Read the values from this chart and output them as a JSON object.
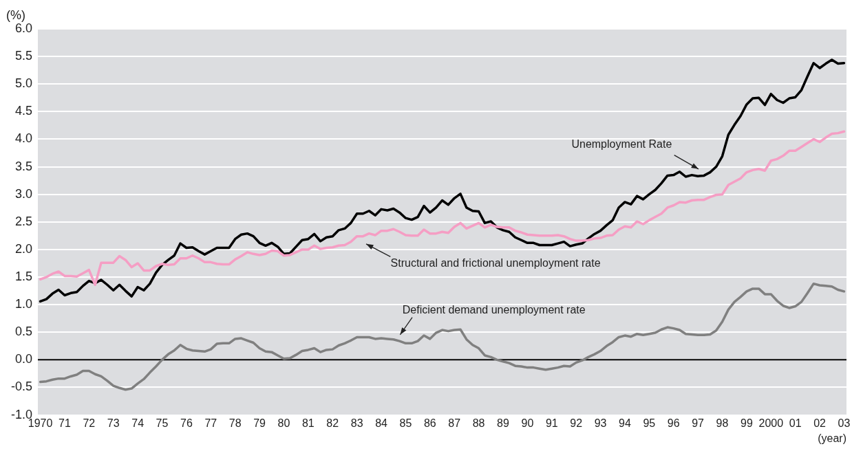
{
  "chart_data": {
    "type": "line",
    "ylabel": "(%)",
    "xlabel": "(year)",
    "x": [
      1970,
      1970.25,
      1970.5,
      1970.75,
      1971,
      1971.25,
      1971.5,
      1971.75,
      1972,
      1972.25,
      1972.5,
      1972.75,
      1973,
      1973.25,
      1973.5,
      1973.75,
      1974,
      1974.25,
      1974.5,
      1974.75,
      1975,
      1975.25,
      1975.5,
      1975.75,
      1976,
      1976.25,
      1976.5,
      1976.75,
      1977,
      1977.25,
      1977.5,
      1977.75,
      1978,
      1978.25,
      1978.5,
      1978.75,
      1979,
      1979.25,
      1979.5,
      1979.75,
      1980,
      1980.25,
      1980.5,
      1980.75,
      1981,
      1981.25,
      1981.5,
      1981.75,
      1982,
      1982.25,
      1982.5,
      1982.75,
      1983,
      1983.25,
      1983.5,
      1983.75,
      1984,
      1984.25,
      1984.5,
      1984.75,
      1985,
      1985.25,
      1985.5,
      1985.75,
      1986,
      1986.25,
      1986.5,
      1986.75,
      1987,
      1987.25,
      1987.5,
      1987.75,
      1988,
      1988.25,
      1988.5,
      1988.75,
      1989,
      1989.25,
      1989.5,
      1989.75,
      1990,
      1990.25,
      1990.5,
      1990.75,
      1991,
      1991.25,
      1991.5,
      1991.75,
      1992,
      1992.25,
      1992.5,
      1992.75,
      1993,
      1993.25,
      1993.5,
      1993.75,
      1994,
      1994.25,
      1994.5,
      1994.75,
      1995,
      1995.25,
      1995.5,
      1995.75,
      1996,
      1996.25,
      1996.5,
      1996.75,
      1997,
      1997.25,
      1997.5,
      1997.75,
      1998,
      1998.25,
      1998.5,
      1998.75,
      1999,
      1999.25,
      1999.5,
      1999.75,
      2000,
      2000.25,
      2000.5,
      2000.75,
      2001,
      2001.25,
      2001.5,
      2001.75,
      2002,
      2002.25,
      2002.5,
      2002.75,
      2003
    ],
    "series": [
      {
        "color": "#f59ec4",
        "values": [
          1.46,
          1.5,
          1.56,
          1.6,
          1.52,
          1.52,
          1.51,
          1.57,
          1.63,
          1.36,
          1.76,
          1.76,
          1.76,
          1.88,
          1.81,
          1.68,
          1.75,
          1.62,
          1.62,
          1.7,
          1.74,
          1.72,
          1.73,
          1.84,
          1.84,
          1.89,
          1.84,
          1.77,
          1.77,
          1.74,
          1.73,
          1.73,
          1.82,
          1.88,
          1.95,
          1.92,
          1.9,
          1.92,
          1.98,
          1.97,
          1.89,
          1.9,
          1.95,
          2.0,
          2.0,
          2.07,
          2.01,
          2.03,
          2.04,
          2.07,
          2.08,
          2.14,
          2.24,
          2.24,
          2.29,
          2.26,
          2.34,
          2.34,
          2.37,
          2.32,
          2.26,
          2.25,
          2.25,
          2.36,
          2.29,
          2.29,
          2.32,
          2.3,
          2.41,
          2.48,
          2.38,
          2.43,
          2.48,
          2.4,
          2.45,
          2.41,
          2.4,
          2.4,
          2.34,
          2.31,
          2.27,
          2.26,
          2.25,
          2.25,
          2.25,
          2.26,
          2.24,
          2.19,
          2.16,
          2.16,
          2.17,
          2.2,
          2.21,
          2.25,
          2.26,
          2.36,
          2.42,
          2.4,
          2.51,
          2.46,
          2.53,
          2.59,
          2.65,
          2.76,
          2.8,
          2.86,
          2.85,
          2.89,
          2.9,
          2.9,
          2.95,
          2.99,
          3.0,
          3.17,
          3.23,
          3.29,
          3.4,
          3.44,
          3.46,
          3.43,
          3.61,
          3.64,
          3.7,
          3.79,
          3.79,
          3.86,
          3.93,
          4.0,
          3.95,
          4.03,
          4.1,
          4.11,
          4.14
        ]
      },
      {
        "color": "#000000",
        "values": [
          1.06,
          1.1,
          1.2,
          1.27,
          1.17,
          1.21,
          1.23,
          1.34,
          1.43,
          1.39,
          1.45,
          1.36,
          1.26,
          1.36,
          1.25,
          1.15,
          1.32,
          1.26,
          1.38,
          1.58,
          1.72,
          1.81,
          1.89,
          2.11,
          2.03,
          2.04,
          1.97,
          1.91,
          1.97,
          2.03,
          2.03,
          2.03,
          2.19,
          2.27,
          2.29,
          2.24,
          2.12,
          2.07,
          2.12,
          2.05,
          1.92,
          1.93,
          2.05,
          2.17,
          2.19,
          2.28,
          2.15,
          2.22,
          2.24,
          2.35,
          2.38,
          2.48,
          2.65,
          2.65,
          2.7,
          2.62,
          2.73,
          2.71,
          2.74,
          2.67,
          2.57,
          2.54,
          2.59,
          2.79,
          2.67,
          2.76,
          2.89,
          2.81,
          2.93,
          3.01,
          2.76,
          2.7,
          2.69,
          2.48,
          2.51,
          2.4,
          2.35,
          2.32,
          2.22,
          2.17,
          2.12,
          2.12,
          2.08,
          2.08,
          2.08,
          2.11,
          2.14,
          2.06,
          2.09,
          2.11,
          2.2,
          2.28,
          2.34,
          2.44,
          2.53,
          2.76,
          2.86,
          2.82,
          2.97,
          2.91,
          3.0,
          3.08,
          3.2,
          3.34,
          3.35,
          3.41,
          3.32,
          3.35,
          3.33,
          3.34,
          3.4,
          3.5,
          3.69,
          4.08,
          4.26,
          4.42,
          4.63,
          4.74,
          4.75,
          4.62,
          4.82,
          4.71,
          4.66,
          4.74,
          4.76,
          4.89,
          5.14,
          5.38,
          5.29,
          5.37,
          5.44,
          5.37,
          5.38
        ]
      },
      {
        "color": "#808080",
        "values": [
          -0.4,
          -0.39,
          -0.36,
          -0.34,
          -0.34,
          -0.3,
          -0.27,
          -0.2,
          -0.2,
          -0.26,
          -0.3,
          -0.38,
          -0.47,
          -0.51,
          -0.54,
          -0.52,
          -0.43,
          -0.35,
          -0.23,
          -0.12,
          0.0,
          0.1,
          0.17,
          0.27,
          0.2,
          0.17,
          0.16,
          0.15,
          0.19,
          0.29,
          0.3,
          0.3,
          0.38,
          0.39,
          0.35,
          0.31,
          0.21,
          0.15,
          0.14,
          0.08,
          0.02,
          0.03,
          0.09,
          0.16,
          0.18,
          0.21,
          0.14,
          0.18,
          0.19,
          0.26,
          0.3,
          0.35,
          0.41,
          0.41,
          0.41,
          0.38,
          0.39,
          0.38,
          0.37,
          0.34,
          0.3,
          0.3,
          0.34,
          0.44,
          0.38,
          0.49,
          0.54,
          0.52,
          0.54,
          0.55,
          0.37,
          0.27,
          0.21,
          0.08,
          0.05,
          0.0,
          -0.03,
          -0.06,
          -0.11,
          -0.12,
          -0.14,
          -0.14,
          -0.16,
          -0.18,
          -0.16,
          -0.14,
          -0.11,
          -0.12,
          -0.05,
          -0.01,
          0.05,
          0.1,
          0.16,
          0.25,
          0.32,
          0.41,
          0.44,
          0.42,
          0.47,
          0.45,
          0.47,
          0.49,
          0.55,
          0.59,
          0.57,
          0.54,
          0.47,
          0.46,
          0.45,
          0.45,
          0.46,
          0.53,
          0.69,
          0.91,
          1.05,
          1.14,
          1.24,
          1.29,
          1.29,
          1.19,
          1.19,
          1.07,
          0.98,
          0.94,
          0.97,
          1.05,
          1.21,
          1.38,
          1.35,
          1.34,
          1.33,
          1.27,
          1.24
        ]
      }
    ],
    "annotations": [
      "Unemployment Rate",
      "Structural and frictional unemployment rate",
      "Deficient demand unemployment rate"
    ],
    "ref_lines": [
      {
        "axis": "y",
        "value": 0,
        "color": "#000000"
      }
    ],
    "xlim": [
      1969.9,
      2003.1
    ],
    "xticks": [
      1970,
      {
        "value": 1971,
        "label": "71"
      },
      {
        "value": 1972,
        "label": "72"
      },
      {
        "value": 1973,
        "label": "73"
      },
      {
        "value": 1974,
        "label": "74"
      },
      {
        "value": 1975,
        "label": "75"
      },
      {
        "value": 1976,
        "label": "76"
      },
      {
        "value": 1977,
        "label": "77"
      },
      {
        "value": 1978,
        "label": "78"
      },
      {
        "value": 1979,
        "label": "79"
      },
      {
        "value": 1980,
        "label": "80"
      },
      {
        "value": 1981,
        "label": "81"
      },
      {
        "value": 1982,
        "label": "82"
      },
      {
        "value": 1983,
        "label": "83"
      },
      {
        "value": 1984,
        "label": "84"
      },
      {
        "value": 1985,
        "label": "85"
      },
      {
        "value": 1986,
        "label": "86"
      },
      {
        "value": 1987,
        "label": "87"
      },
      {
        "value": 1988,
        "label": "88"
      },
      {
        "value": 1989,
        "label": "89"
      },
      {
        "value": 1990,
        "label": "90"
      },
      {
        "value": 1991,
        "label": "91"
      },
      {
        "value": 1992,
        "label": "92"
      },
      {
        "value": 1993,
        "label": "93"
      },
      {
        "value": 1994,
        "label": "94"
      },
      {
        "value": 1995,
        "label": "95"
      },
      {
        "value": 1996,
        "label": "96"
      },
      {
        "value": 1997,
        "label": "97"
      },
      {
        "value": 1998,
        "label": "98"
      },
      {
        "value": 1999,
        "label": "99"
      },
      2000,
      {
        "value": 2001,
        "label": "01"
      },
      {
        "value": 2002,
        "label": "02"
      },
      {
        "value": 2003,
        "label": "03"
      }
    ],
    "ylim": [
      -1,
      6
    ],
    "yticks": [
      {
        "value": -1,
        "label": "-1.0"
      },
      {
        "value": -0.5,
        "label": "-0.5"
      },
      {
        "value": 0,
        "label": "0.0"
      },
      {
        "value": 0.5,
        "label": "0.5"
      },
      {
        "value": 1,
        "label": "1.0"
      },
      {
        "value": 1.5,
        "label": "1.5"
      },
      {
        "value": 2,
        "label": "2.0"
      },
      {
        "value": 2.5,
        "label": "2.5"
      },
      {
        "value": 3,
        "label": "3.0"
      },
      {
        "value": 3.5,
        "label": "3.5"
      },
      {
        "value": 4,
        "label": "4.0"
      },
      {
        "value": 4.5,
        "label": "4.5"
      },
      {
        "value": 5,
        "label": "5.0"
      },
      {
        "value": 5.5,
        "label": "5.5"
      },
      {
        "value": 6,
        "label": "6.0"
      }
    ],
    "grid": "y",
    "legend": false,
    "marker": "none",
    "line_style": "solid"
  }
}
